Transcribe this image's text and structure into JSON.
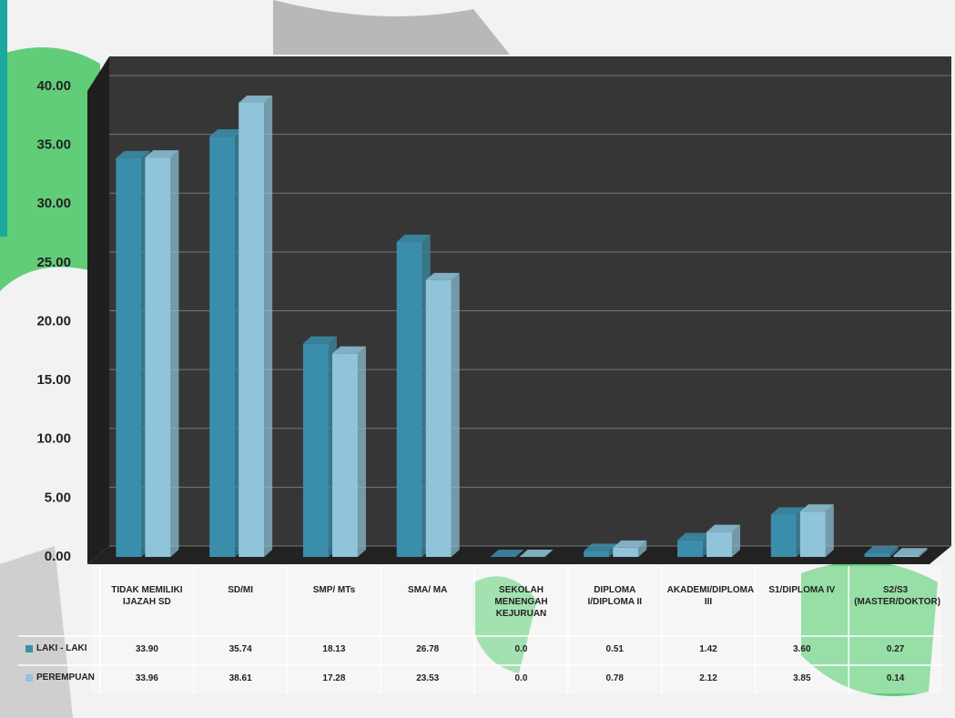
{
  "chart_data": {
    "type": "bar",
    "categories": [
      "TIDAK MEMILIKI IJAZAH SD",
      "SD/MI",
      "SMP/ MTs",
      "SMA/ MA",
      "SEKOLAH MENENGAH KEJURUAN",
      "DIPLOMA I/DIPLOMA II",
      "AKADEMI/DIPLOMA III",
      "S1/DIPLOMA IV",
      "S2/S3 (MASTER/DOKTOR)"
    ],
    "series": [
      {
        "name": "LAKI - LAKI",
        "color": "#3b8eab",
        "values": [
          33.9,
          35.74,
          18.13,
          26.78,
          0.0,
          0.51,
          1.42,
          3.6,
          0.27
        ],
        "value_labels": [
          "33.90",
          "35.74",
          "18.13",
          "26.78",
          "0.0",
          "0.51",
          "1.42",
          "3.60",
          "0.27"
        ]
      },
      {
        "name": "PEREMPUAN",
        "color": "#8fc4da",
        "values": [
          33.96,
          38.61,
          17.28,
          23.53,
          0.0,
          0.78,
          2.12,
          3.85,
          0.14
        ],
        "value_labels": [
          "33.96",
          "38.61",
          "17.28",
          "23.53",
          "0.0",
          "0.78",
          "2.12",
          "3.85",
          "0.14"
        ]
      }
    ],
    "ylim": [
      0,
      40
    ],
    "yticks": [
      {
        "value": 0,
        "label": "0.00"
      },
      {
        "value": 5,
        "label": "5.00"
      },
      {
        "value": 10,
        "label": "10.00"
      },
      {
        "value": 15,
        "label": "15.00"
      },
      {
        "value": 20,
        "label": "20.00"
      },
      {
        "value": 25,
        "label": "25.00"
      },
      {
        "value": 30,
        "label": "30.00"
      },
      {
        "value": 35,
        "label": "35.00"
      },
      {
        "value": 40,
        "label": "40.00"
      }
    ],
    "grid": true
  }
}
